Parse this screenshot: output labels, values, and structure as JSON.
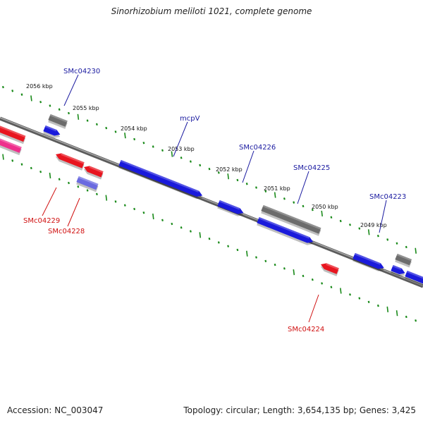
{
  "title": "Sinorhizobium meliloti 1021, complete genome",
  "footer": {
    "accession": "Accession: NC_003047",
    "summary": "Topology: circular; Length: 3,654,135 bp; Genes: 3,425"
  },
  "colors": {
    "forward_gene": "#1a1adb",
    "reverse_gene": "#e8151f",
    "pseudo_gene": "#6a6ae0",
    "rna_gene": "#ee2f8c",
    "other_feature": "#6c6c6c",
    "backbone": "#7a7a7a",
    "ticks": "#1a8a1a",
    "label_forward": "#1a1aa0",
    "label_reverse": "#d01010"
  },
  "ticks": [
    {
      "label": "2056 kbp"
    },
    {
      "label": "2055 kbp"
    },
    {
      "label": "2054 kbp"
    },
    {
      "label": "2053 kbp"
    },
    {
      "label": "2052 kbp"
    },
    {
      "label": "2051 kbp"
    },
    {
      "label": "2050 kbp"
    },
    {
      "label": "2049 kbp"
    }
  ],
  "gene_labels": {
    "SMc04230": "SMc04230",
    "mcpV": "mcpV",
    "SMc04226": "SMc04226",
    "SMc04225": "SMc04225",
    "SMc04223": "SMc04223",
    "SMc04229": "SMc04229",
    "SMc04228": "SMc04228",
    "SMc04224": "SMc04224"
  }
}
